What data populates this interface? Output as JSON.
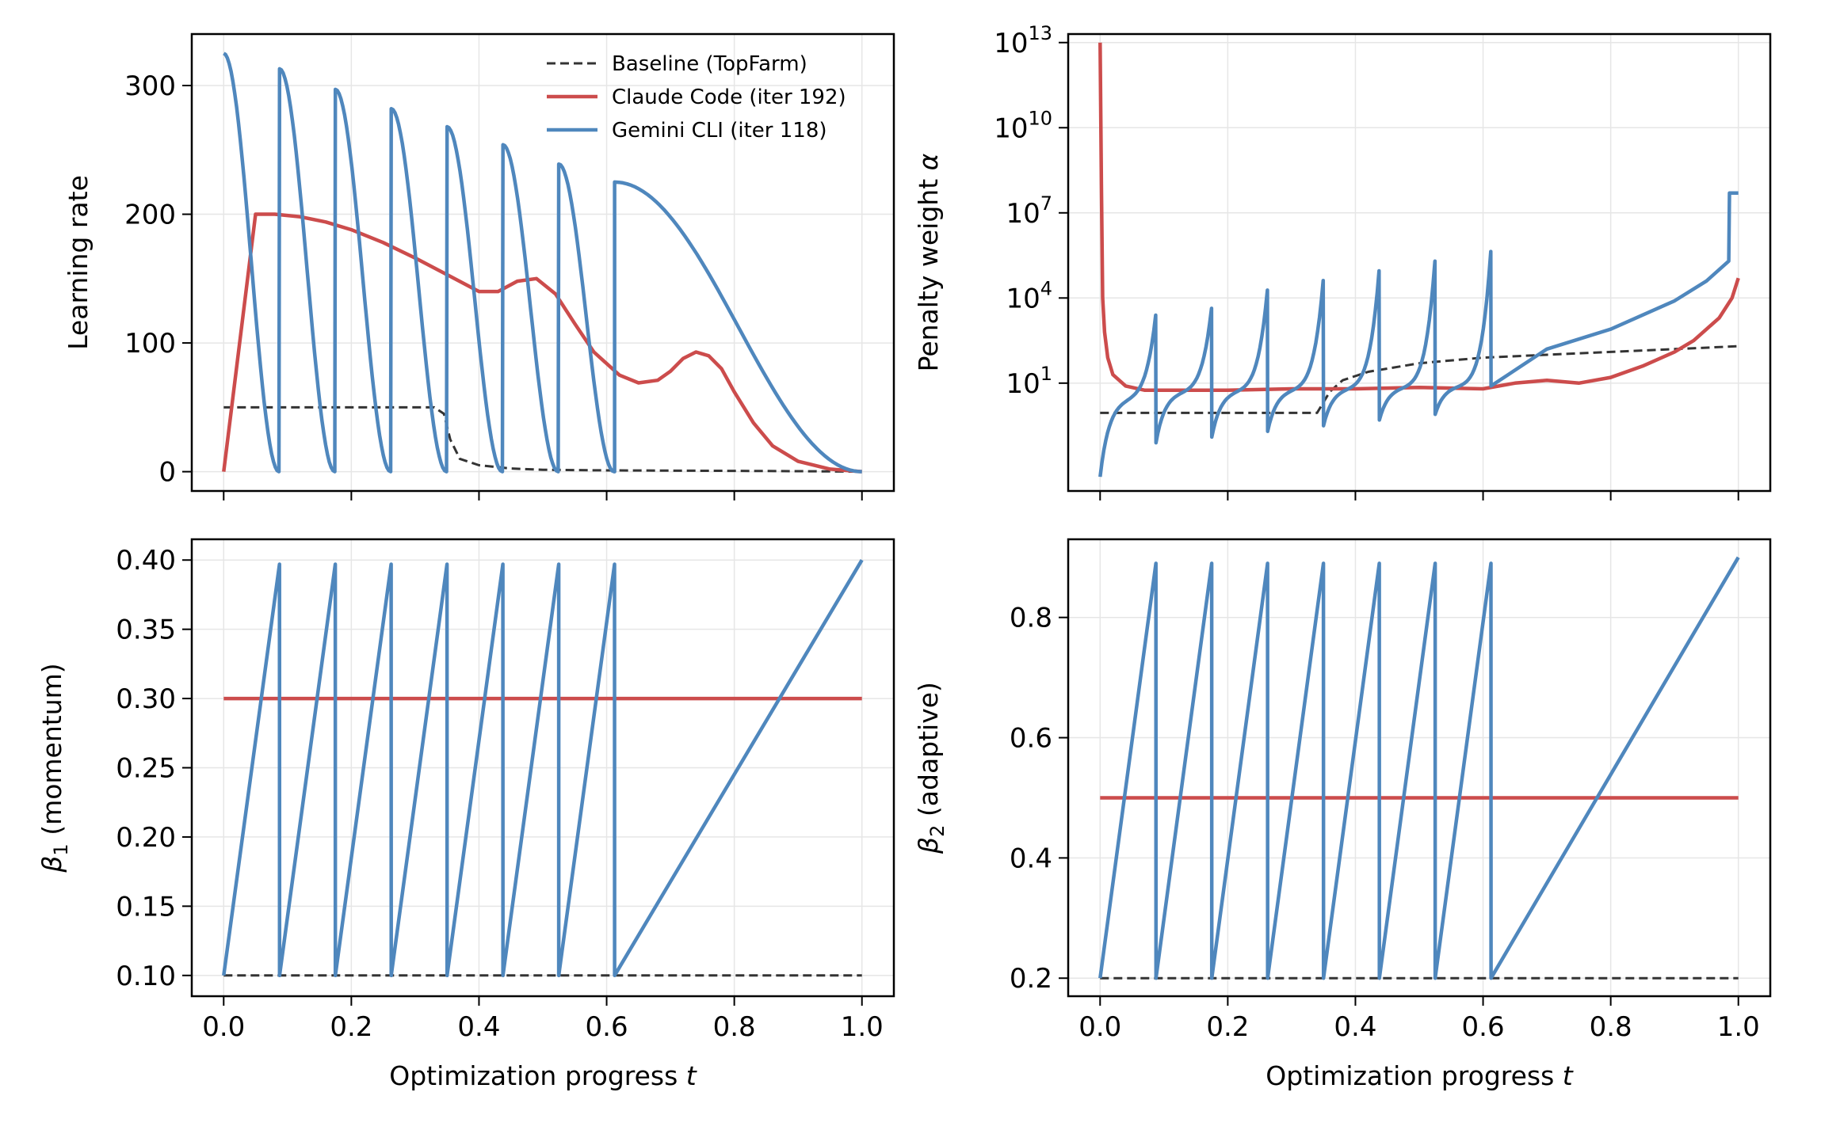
{
  "chart_data": [
    {
      "type": "line",
      "panel": "top-left",
      "xlabel_prefix": "",
      "xlabel_var": "",
      "ylabel": "Learning rate",
      "xlim": [
        -0.05,
        1.05
      ],
      "ylim": [
        -15,
        340
      ],
      "xticks": [],
      "xtick_labels": [],
      "yticks": [
        0,
        100,
        200,
        300
      ],
      "ytick_labels": [
        "0",
        "100",
        "200",
        "300"
      ],
      "yscale": "linear",
      "grid": true,
      "legend": {
        "placement": "top-right",
        "entries": [
          {
            "label": "Baseline (TopFarm)",
            "color": "#333333",
            "dash": true
          },
          {
            "label": "Claude Code (iter 192)",
            "color": "#cc4c4c",
            "dash": false
          },
          {
            "label": "Gemini CLI (iter 118)",
            "color": "#4f87bd",
            "dash": false
          }
        ]
      },
      "series": [
        {
          "name": "Baseline (TopFarm)",
          "color": "#333333",
          "dash": true,
          "x": [
            0,
            0.1,
            0.2,
            0.3,
            0.33,
            0.345,
            0.355,
            0.37,
            0.4,
            0.45,
            0.5,
            0.6,
            0.7,
            0.8,
            0.9,
            1.0
          ],
          "y": [
            50,
            50,
            50,
            50,
            50,
            45,
            25,
            10,
            5,
            2.5,
            1.5,
            1,
            0.8,
            0.6,
            0.4,
            0
          ]
        },
        {
          "name": "Claude Code (iter 192)",
          "color": "#cc4c4c",
          "dash": false,
          "x": [
            0,
            0.05,
            0.08,
            0.12,
            0.16,
            0.2,
            0.25,
            0.3,
            0.35,
            0.4,
            0.43,
            0.46,
            0.49,
            0.52,
            0.55,
            0.58,
            0.62,
            0.65,
            0.68,
            0.7,
            0.72,
            0.74,
            0.76,
            0.78,
            0.8,
            0.83,
            0.86,
            0.9,
            0.95,
            1.0
          ],
          "y": [
            0,
            200,
            200,
            198,
            194,
            188,
            178,
            166,
            153,
            140,
            140,
            148,
            150,
            138,
            115,
            93,
            75,
            69,
            71,
            78,
            88,
            93,
            90,
            80,
            62,
            38,
            20,
            8,
            2,
            0
          ]
        },
        {
          "name": "Gemini CLI (iter 118)",
          "color": "#4f87bd",
          "dash": false,
          "cycle": {
            "n": 7,
            "period": 0.0875,
            "peaks": [
              325,
              313,
              297,
              282,
              268,
              254,
              239
            ]
          },
          "tail": {
            "x0": 0.6125,
            "peak": 225
          },
          "x": [],
          "y": []
        }
      ]
    },
    {
      "type": "line",
      "panel": "top-right",
      "xlabel_prefix": "",
      "xlabel_var": "",
      "ylabel_prefix": "Penalty weight ",
      "ylabel_var": "α",
      "xlim": [
        -0.05,
        1.05
      ],
      "ylim_log10": [
        -2.8,
        13.3
      ],
      "yscale": "log",
      "yticks_log10": [
        1,
        4,
        7,
        10,
        13
      ],
      "ytick_base": "10",
      "ytick_exponents": [
        "1",
        "4",
        "7",
        "10",
        "13"
      ],
      "xticks": [],
      "xtick_labels": [],
      "grid": true,
      "series": [
        {
          "name": "Baseline (TopFarm)",
          "color": "#333333",
          "dash": true,
          "x": [
            0,
            0.05,
            0.1,
            0.2,
            0.3,
            0.34,
            0.36,
            0.38,
            0.42,
            0.5,
            0.6,
            0.7,
            0.8,
            0.9,
            1.0
          ],
          "log10_y": [
            -0.05,
            -0.05,
            -0.05,
            -0.05,
            -0.05,
            -0.05,
            0.7,
            1.1,
            1.4,
            1.7,
            1.9,
            2.0,
            2.1,
            2.2,
            2.3
          ]
        },
        {
          "name": "Claude Code (iter 192)",
          "color": "#cc4c4c",
          "dash": false,
          "x": [
            0,
            0.002,
            0.004,
            0.007,
            0.012,
            0.02,
            0.04,
            0.07,
            0.1,
            0.2,
            0.3,
            0.4,
            0.5,
            0.6,
            0.65,
            0.7,
            0.75,
            0.8,
            0.85,
            0.9,
            0.93,
            0.95,
            0.97,
            0.99,
            1.0
          ],
          "log10_y": [
            13,
            8,
            4,
            2.8,
            1.9,
            1.3,
            0.9,
            0.75,
            0.75,
            0.75,
            0.8,
            0.8,
            0.85,
            0.8,
            1.0,
            1.1,
            1.0,
            1.2,
            1.6,
            2.1,
            2.5,
            2.9,
            3.3,
            4.0,
            4.7
          ]
        },
        {
          "name": "Gemini CLI (iter 118)",
          "color": "#4f87bd",
          "dash": false,
          "cycle": {
            "n": 7,
            "period": 0.0875,
            "peaks": [
              3.9,
              3.9,
              4.5,
              4.8,
              5.1,
              5.4,
              5.7
            ],
            "starts": [
              -2.3,
              -1.1,
              -0.9,
              -0.7,
              -0.5,
              -0.3,
              -0.1
            ]
          },
          "tail": {
            "x0": 0.6125,
            "x": [
              0.6125,
              0.7,
              0.8,
              0.9,
              0.95,
              0.985,
              0.986,
              1.0
            ],
            "log10_y": [
              0.9,
              2.2,
              2.9,
              3.9,
              4.6,
              5.3,
              7.7,
              7.7
            ]
          },
          "x": [],
          "log10_y": []
        }
      ]
    },
    {
      "type": "line",
      "panel": "bottom-left",
      "xlabel_prefix": "Optimization progress ",
      "xlabel_var": "t",
      "ylabel_var": "β",
      "ylabel_sub": "1",
      "ylabel_suffix": " (momentum)",
      "xlim": [
        -0.05,
        1.05
      ],
      "ylim": [
        0.085,
        0.415
      ],
      "yscale": "linear",
      "yticks": [
        0.1,
        0.15,
        0.2,
        0.25,
        0.3,
        0.35,
        0.4
      ],
      "ytick_labels": [
        "0.10",
        "0.15",
        "0.20",
        "0.25",
        "0.30",
        "0.35",
        "0.40"
      ],
      "xticks": [
        0,
        0.2,
        0.4,
        0.6,
        0.8,
        1.0
      ],
      "xtick_labels": [
        "0.0",
        "0.2",
        "0.4",
        "0.6",
        "0.8",
        "1.0"
      ],
      "grid": true,
      "series": [
        {
          "name": "Baseline (TopFarm)",
          "color": "#333333",
          "dash": true,
          "x": [
            0,
            1
          ],
          "y": [
            0.1,
            0.1
          ]
        },
        {
          "name": "Claude Code (iter 192)",
          "color": "#cc4c4c",
          "dash": false,
          "x": [
            0,
            1
          ],
          "y": [
            0.3,
            0.3
          ]
        },
        {
          "name": "Gemini CLI (iter 118)",
          "color": "#4f87bd",
          "dash": false,
          "sawtooth": {
            "n": 7,
            "period": 0.0875,
            "low": 0.1,
            "high": 0.397,
            "tail_end": 0.4
          },
          "x": [],
          "y": []
        }
      ]
    },
    {
      "type": "line",
      "panel": "bottom-right",
      "xlabel_prefix": "Optimization progress ",
      "xlabel_var": "t",
      "ylabel_var": "β",
      "ylabel_sub": "2",
      "ylabel_suffix": " (adaptive)",
      "xlim": [
        -0.05,
        1.05
      ],
      "ylim": [
        0.17,
        0.93
      ],
      "yscale": "linear",
      "yticks": [
        0.2,
        0.4,
        0.6,
        0.8
      ],
      "ytick_labels": [
        "0.2",
        "0.4",
        "0.6",
        "0.8"
      ],
      "xticks": [
        0,
        0.2,
        0.4,
        0.6,
        0.8,
        1.0
      ],
      "xtick_labels": [
        "0.0",
        "0.2",
        "0.4",
        "0.6",
        "0.8",
        "1.0"
      ],
      "grid": true,
      "series": [
        {
          "name": "Baseline (TopFarm)",
          "color": "#333333",
          "dash": true,
          "x": [
            0,
            1
          ],
          "y": [
            0.2,
            0.2
          ]
        },
        {
          "name": "Claude Code (iter 192)",
          "color": "#cc4c4c",
          "dash": false,
          "x": [
            0,
            1
          ],
          "y": [
            0.5,
            0.5
          ]
        },
        {
          "name": "Gemini CLI (iter 118)",
          "color": "#4f87bd",
          "dash": false,
          "sawtooth": {
            "n": 7,
            "period": 0.0875,
            "low": 0.2,
            "high": 0.89,
            "tail_end": 0.9
          },
          "x": [],
          "y": []
        }
      ]
    }
  ]
}
